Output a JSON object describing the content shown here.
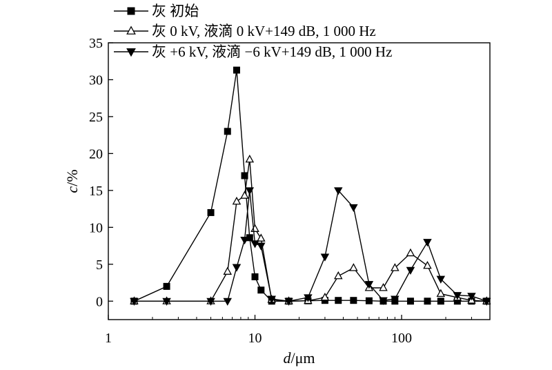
{
  "chart_data": {
    "type": "line",
    "xscale": "log",
    "xlabel_var": "d",
    "xlabel_unit": "/μm",
    "ylabel_var": "c",
    "ylabel_unit": "/%",
    "xlim": [
      1,
      400
    ],
    "ylim": [
      -2.5,
      35
    ],
    "xticks": [
      1,
      10,
      100
    ],
    "xtick_labels": [
      "1",
      "10",
      "100"
    ],
    "yticks": [
      0,
      5,
      10,
      15,
      20,
      25,
      30,
      35
    ],
    "ytick_labels": [
      "0",
      "5",
      "10",
      "15",
      "20",
      "25",
      "30",
      "35"
    ],
    "legend_position": "top",
    "series": [
      {
        "name": "灰 初始",
        "marker": "square-filled",
        "color": "#000000",
        "x": [
          1.5,
          2.5,
          5,
          6.5,
          7.5,
          8.5,
          9.2,
          10,
          11,
          13,
          17,
          23,
          30,
          37,
          47,
          60,
          75,
          90,
          115,
          150,
          185,
          240,
          300,
          380
        ],
        "y": [
          0,
          2,
          12,
          23,
          31.3,
          17,
          8.6,
          3.3,
          1.5,
          0,
          0,
          0.05,
          0.1,
          0.1,
          0.1,
          0.05,
          0,
          0,
          0,
          0,
          0,
          0,
          0,
          0
        ]
      },
      {
        "name": "灰 0 kV, 液滴 0 kV+149 dB, 1 000 Hz",
        "marker": "triangle-up-open",
        "color": "#000000",
        "x": [
          1.5,
          2.5,
          5,
          6.5,
          7.5,
          8.5,
          9.2,
          10,
          11,
          13,
          17,
          23,
          30,
          37,
          47,
          60,
          75,
          90,
          115,
          150,
          185,
          240,
          300,
          380
        ],
        "y": [
          0,
          0,
          0,
          4,
          13.5,
          14.3,
          19.2,
          9.8,
          8.5,
          0.2,
          0,
          0.05,
          0.5,
          3.4,
          4.5,
          1.8,
          1.8,
          4.5,
          6.5,
          4.8,
          1,
          0.5,
          0.1,
          0
        ]
      },
      {
        "name": "灰 +6 kV, 液滴 −6 kV+149 dB, 1 000 Hz",
        "marker": "triangle-down-filled",
        "color": "#000000",
        "x": [
          1.5,
          2.5,
          5,
          6.5,
          7.5,
          8.5,
          9.2,
          10,
          11,
          13,
          17,
          23,
          30,
          37,
          47,
          60,
          75,
          90,
          115,
          150,
          185,
          240,
          300,
          380
        ],
        "y": [
          0,
          0,
          0,
          0,
          4.6,
          8.3,
          15,
          7.8,
          7.5,
          0.3,
          0,
          0.5,
          6,
          15,
          12.7,
          2.3,
          0.1,
          0.3,
          4.2,
          8,
          3,
          0.8,
          0.7,
          0
        ]
      }
    ]
  }
}
